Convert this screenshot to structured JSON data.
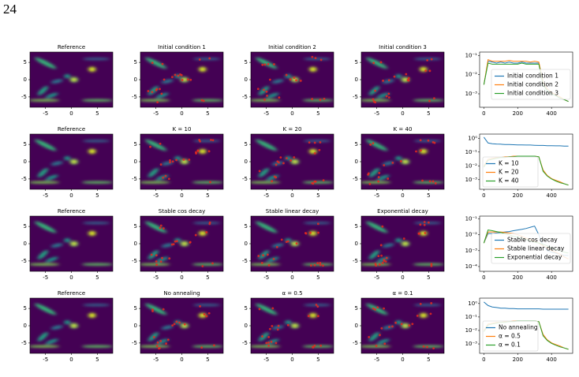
{
  "page_number": "24",
  "figure": {
    "heatmap_xlim": [
      -8,
      8
    ],
    "heatmap_ylim": [
      -8,
      8
    ],
    "heatmap_xticks": [
      -5,
      0,
      5
    ],
    "heatmap_yticks": [
      -5,
      0,
      5
    ],
    "rows": [
      {
        "panels": [
          {
            "title": "Reference"
          },
          {
            "title": "Initial condition 1"
          },
          {
            "title": "Initial condition 2"
          },
          {
            "title": "Initial condition 3"
          }
        ],
        "chart": {
          "type": "line",
          "yscale": "log",
          "legend": "center right",
          "xlim": [
            -25,
            525
          ],
          "xticks": [
            0,
            200,
            400
          ],
          "ylim": [
            0.0002,
            0.15
          ],
          "yticks": [
            {
              "value": 0.1,
              "label": "10⁻¹"
            },
            {
              "value": 0.01,
              "label": "10⁻²"
            },
            {
              "value": 0.001,
              "label": "10⁻³"
            }
          ],
          "x": [
            0,
            25,
            50,
            75,
            100,
            125,
            150,
            175,
            200,
            225,
            250,
            275,
            300,
            325,
            350,
            375,
            400,
            425,
            450,
            475,
            500
          ],
          "series": [
            {
              "name": "Initial condition 1",
              "color": "#1f77b4",
              "values": [
                0.003,
                0.05,
                0.045,
                0.04,
                0.045,
                0.04,
                0.045,
                0.04,
                0.04,
                0.045,
                0.04,
                0.04,
                0.04,
                0.04,
                0.003,
                0.0015,
                0.001,
                0.0008,
                0.0006,
                0.0005,
                0.0004
              ]
            },
            {
              "name": "Initial condition 2",
              "color": "#ff7f0e",
              "values": [
                0.003,
                0.06,
                0.05,
                0.05,
                0.05,
                0.05,
                0.055,
                0.05,
                0.05,
                0.05,
                0.05,
                0.045,
                0.05,
                0.045,
                0.004,
                0.0018,
                0.0012,
                0.0009,
                0.0007,
                0.0005,
                0.0004
              ]
            },
            {
              "name": "Initial condition 3",
              "color": "#2ca02c",
              "values": [
                0.003,
                0.04,
                0.035,
                0.035,
                0.035,
                0.035,
                0.035,
                0.035,
                0.035,
                0.04,
                0.035,
                0.035,
                0.035,
                0.035,
                0.003,
                0.0014,
                0.001,
                0.0008,
                0.0006,
                0.0005,
                0.0004
              ]
            }
          ]
        }
      },
      {
        "panels": [
          {
            "title": "Reference"
          },
          {
            "title": "K = 10"
          },
          {
            "title": "K = 20"
          },
          {
            "title": "K = 40"
          }
        ],
        "chart": {
          "type": "line",
          "yscale": "log",
          "legend": "lower left",
          "xlim": [
            -25,
            525
          ],
          "xticks": [
            0,
            200,
            400
          ],
          "ylim": [
            0.0002,
            2
          ],
          "yticks": [
            {
              "value": 1,
              "label": "10⁰"
            },
            {
              "value": 0.1,
              "label": "10⁻¹"
            },
            {
              "value": 0.01,
              "label": "10⁻²"
            },
            {
              "value": 0.001,
              "label": "10⁻³"
            }
          ],
          "x": [
            0,
            25,
            50,
            75,
            100,
            125,
            150,
            175,
            200,
            225,
            250,
            275,
            300,
            325,
            350,
            375,
            400,
            425,
            450,
            475,
            500
          ],
          "series": [
            {
              "name": "K = 10",
              "color": "#1f77b4",
              "values": [
                1.2,
                0.45,
                0.4,
                0.38,
                0.37,
                0.35,
                0.35,
                0.34,
                0.33,
                0.33,
                0.32,
                0.32,
                0.31,
                0.3,
                0.3,
                0.29,
                0.29,
                0.28,
                0.28,
                0.27,
                0.27
              ]
            },
            {
              "name": "K = 20",
              "color": "#ff7f0e",
              "values": [
                0.01,
                0.03,
                0.035,
                0.04,
                0.04,
                0.045,
                0.045,
                0.05,
                0.05,
                0.05,
                0.05,
                0.05,
                0.05,
                0.045,
                0.005,
                0.002,
                0.0012,
                0.0009,
                0.0007,
                0.0005,
                0.0004
              ]
            },
            {
              "name": "K = 40",
              "color": "#2ca02c",
              "values": [
                0.008,
                0.025,
                0.03,
                0.035,
                0.04,
                0.04,
                0.045,
                0.045,
                0.05,
                0.05,
                0.05,
                0.05,
                0.05,
                0.045,
                0.004,
                0.0018,
                0.0011,
                0.0008,
                0.0006,
                0.0005,
                0.0004
              ]
            }
          ]
        }
      },
      {
        "panels": [
          {
            "title": "Reference"
          },
          {
            "title": "Stable cos decay"
          },
          {
            "title": "Stable linear decay"
          },
          {
            "title": "Exponential decay"
          }
        ],
        "chart": {
          "type": "line",
          "yscale": "log",
          "legend": "center right",
          "xlim": [
            -25,
            525
          ],
          "xticks": [
            0,
            200,
            400
          ],
          "ylim": [
            5e-05,
            0.15
          ],
          "yticks": [
            {
              "value": 0.1,
              "label": "10⁻¹"
            },
            {
              "value": 0.01,
              "label": "10⁻²"
            },
            {
              "value": 0.001,
              "label": "10⁻³"
            },
            {
              "value": 0.0001,
              "label": "10⁻⁴"
            }
          ],
          "x": [
            0,
            25,
            50,
            75,
            100,
            125,
            150,
            175,
            200,
            225,
            250,
            275,
            300,
            325,
            350,
            375,
            400,
            425,
            450,
            475,
            500
          ],
          "series": [
            {
              "name": "Stable cos decay",
              "color": "#1f77b4",
              "values": [
                0.003,
                0.012,
                0.012,
                0.013,
                0.014,
                0.015,
                0.016,
                0.018,
                0.02,
                0.022,
                0.025,
                0.03,
                0.035,
                0.01,
                0.002,
                0.001,
                0.0008,
                0.0007,
                0.0006,
                0.0005,
                0.0005
              ]
            },
            {
              "name": "Stable linear decay",
              "color": "#ff7f0e",
              "values": [
                0.003,
                0.015,
                0.015,
                0.015,
                0.015,
                0.014,
                0.013,
                0.012,
                0.01,
                0.008,
                0.006,
                0.005,
                0.004,
                0.003,
                0.002,
                0.0015,
                0.001,
                0.0008,
                0.0006,
                0.0004,
                0.0003
              ]
            },
            {
              "name": "Exponential decay",
              "color": "#2ca02c",
              "values": [
                0.003,
                0.02,
                0.018,
                0.016,
                0.014,
                0.012,
                0.01,
                0.008,
                0.007,
                0.006,
                0.005,
                0.004,
                0.0035,
                0.003,
                0.0025,
                0.002,
                0.0015,
                0.0012,
                0.001,
                0.0008,
                0.0007
              ]
            }
          ]
        }
      },
      {
        "panels": [
          {
            "title": "Reference"
          },
          {
            "title": "No annealing"
          },
          {
            "title": "α = 0.5"
          },
          {
            "title": "α = 0.1"
          }
        ],
        "chart": {
          "type": "line",
          "yscale": "log",
          "legend": "lower left",
          "xlim": [
            -25,
            525
          ],
          "xticks": [
            0,
            200,
            400
          ],
          "ylim": [
            0.0002,
            2.5
          ],
          "yticks": [
            {
              "value": 1,
              "label": "10⁰"
            },
            {
              "value": 0.1,
              "label": "10⁻¹"
            },
            {
              "value": 0.01,
              "label": "10⁻²"
            },
            {
              "value": 0.001,
              "label": "10⁻³"
            }
          ],
          "x": [
            0,
            25,
            50,
            75,
            100,
            125,
            150,
            175,
            200,
            225,
            250,
            275,
            300,
            325,
            350,
            375,
            400,
            425,
            450,
            475,
            500
          ],
          "series": [
            {
              "name": "No annealing",
              "color": "#1f77b4",
              "values": [
                1.3,
                0.7,
                0.55,
                0.5,
                0.45,
                0.45,
                0.42,
                0.42,
                0.4,
                0.4,
                0.4,
                0.4,
                0.4,
                0.4,
                0.38,
                0.38,
                0.38,
                0.38,
                0.38,
                0.38,
                0.38
              ]
            },
            {
              "name": "α = 0.5",
              "color": "#ff7f0e",
              "values": [
                0.01,
                0.03,
                0.035,
                0.04,
                0.04,
                0.045,
                0.045,
                0.05,
                0.05,
                0.05,
                0.05,
                0.05,
                0.05,
                0.045,
                0.005,
                0.002,
                0.0012,
                0.0009,
                0.0007,
                0.0005,
                0.0004
              ]
            },
            {
              "name": "α = 0.1",
              "color": "#2ca02c",
              "values": [
                0.008,
                0.025,
                0.03,
                0.035,
                0.04,
                0.04,
                0.045,
                0.045,
                0.05,
                0.05,
                0.05,
                0.05,
                0.05,
                0.045,
                0.004,
                0.0018,
                0.0011,
                0.0008,
                0.0006,
                0.0005,
                0.0004
              ]
            }
          ]
        }
      }
    ]
  }
}
